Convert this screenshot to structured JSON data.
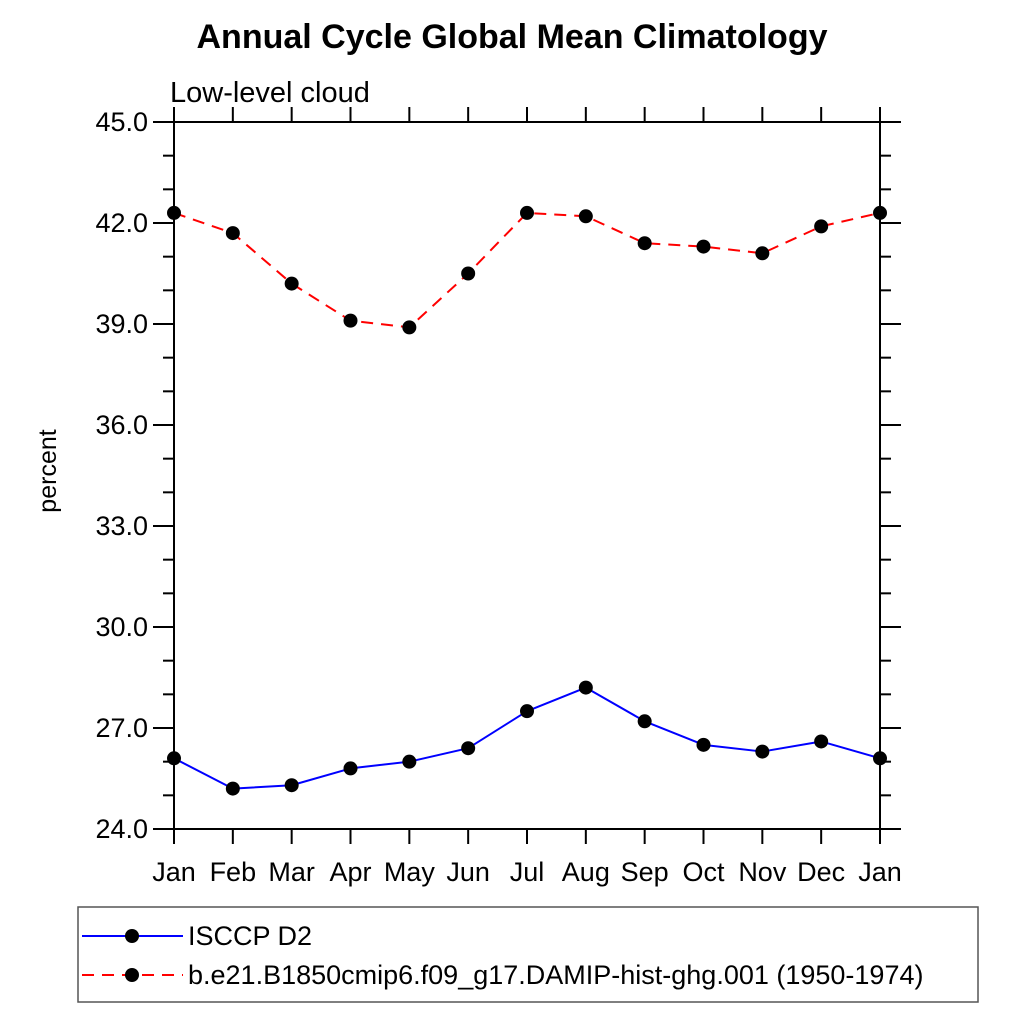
{
  "title": "Annual Cycle Global Mean Climatology",
  "subtitle": "Low-level cloud",
  "chart_data": {
    "type": "line",
    "x_categories": [
      "Jan",
      "Feb",
      "Mar",
      "Apr",
      "May",
      "Jun",
      "Jul",
      "Aug",
      "Sep",
      "Oct",
      "Nov",
      "Dec",
      "Jan"
    ],
    "ylabel": "percent",
    "ylim": [
      24.0,
      45.0
    ],
    "ytick_major_step": 3.0,
    "ytick_minor_step": 1.0,
    "ytick_labels": [
      "24.0",
      "27.0",
      "30.0",
      "33.0",
      "36.0",
      "39.0",
      "42.0",
      "45.0"
    ],
    "grid": false,
    "frame_color": "#000000",
    "background_color": "#ffffff",
    "legend_position": "bottom-left-box",
    "legend_border_color": "#555555",
    "series": [
      {
        "name": "ISCCP D2",
        "line_color": "#0000ff",
        "line_style": "solid",
        "marker": "filled-circle",
        "marker_color": "#000000",
        "values": [
          26.1,
          25.2,
          25.3,
          25.8,
          26.0,
          26.4,
          27.5,
          28.2,
          27.2,
          26.5,
          26.3,
          26.6,
          26.1
        ]
      },
      {
        "name": "b.e21.B1850cmip6.f09_g17.DAMIP-hist-ghg.001 (1950-1974)",
        "line_color": "#ff0000",
        "line_style": "dashed",
        "marker": "filled-circle",
        "marker_color": "#000000",
        "values": [
          42.3,
          41.7,
          40.2,
          39.1,
          38.9,
          40.5,
          42.3,
          42.2,
          41.4,
          41.3,
          41.1,
          41.9,
          42.3
        ]
      }
    ]
  }
}
